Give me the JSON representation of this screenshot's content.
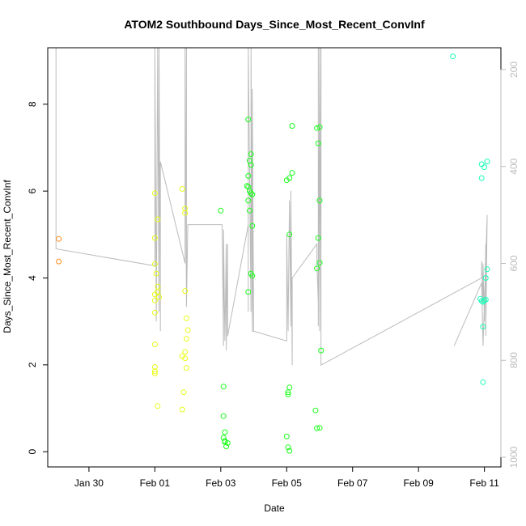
{
  "chart_data": {
    "type": "scatter",
    "title": "ATOM2 Southbound Days_Since_Most_Recent_ConvInf",
    "xlabel": "Date",
    "ylabel": "Days_Since_Most_Recent_ConvInf",
    "xlim": [
      "2024-01-28 18:00",
      "2024-02-11 12:00"
    ],
    "ylim": [
      -0.35,
      9.3
    ],
    "x_ticks": [
      "Jan 30",
      "Feb 01",
      "Feb 03",
      "Feb 05",
      "Feb 07",
      "Feb 09",
      "Feb 11"
    ],
    "y_ticks": [
      0,
      2,
      4,
      6,
      8
    ],
    "y2_ticks": [
      200,
      400,
      600,
      800,
      1000
    ],
    "y2lim": [
      1020,
      155
    ],
    "grid": false,
    "colors": {
      "orange": "#ff8c1a",
      "yellow": "#e8ff1a",
      "green": "#1aff1a",
      "teal": "#1affb8",
      "line": "#bbbbbb"
    },
    "series": [
      {
        "color": "orange",
        "points": [
          [
            "2024-01-29 02:00",
            4.9
          ],
          [
            "2024-01-29 02:00",
            4.38
          ]
        ]
      },
      {
        "color": "yellow",
        "points": [
          [
            "2024-02-01 00:00",
            5.95
          ],
          [
            "2024-02-01 00:00",
            4.92
          ],
          [
            "2024-02-01 00:00",
            4.32
          ],
          [
            "2024-02-01 00:00",
            3.62
          ],
          [
            "2024-02-01 00:00",
            3.48
          ],
          [
            "2024-02-01 00:00",
            3.2
          ],
          [
            "2024-02-01 00:00",
            2.47
          ],
          [
            "2024-02-01 00:00",
            1.95
          ],
          [
            "2024-02-01 00:00",
            1.85
          ],
          [
            "2024-02-01 00:00",
            1.8
          ],
          [
            "2024-02-01 01:00",
            4.1
          ],
          [
            "2024-02-01 02:00",
            5.35
          ],
          [
            "2024-02-01 02:00",
            3.8
          ],
          [
            "2024-02-01 02:00",
            3.68
          ],
          [
            "2024-02-01 03:00",
            3.56
          ],
          [
            "2024-02-01 02:00",
            1.05
          ],
          [
            "2024-02-01 20:00",
            6.05
          ],
          [
            "2024-02-01 20:00",
            2.2
          ],
          [
            "2024-02-01 21:00",
            1.37
          ],
          [
            "2024-02-01 20:00",
            0.97
          ],
          [
            "2024-02-01 22:00",
            5.6
          ],
          [
            "2024-02-01 22:00",
            5.5
          ],
          [
            "2024-02-01 22:00",
            3.7
          ],
          [
            "2024-02-01 23:00",
            3.07
          ],
          [
            "2024-02-02 00:00",
            2.8
          ],
          [
            "2024-02-01 23:00",
            2.6
          ],
          [
            "2024-02-01 22:00",
            2.3
          ],
          [
            "2024-02-01 22:00",
            2.15
          ],
          [
            "2024-02-01 23:00",
            1.93
          ]
        ]
      },
      {
        "color": "green",
        "points": [
          [
            "2024-02-03 00:00",
            5.55
          ],
          [
            "2024-02-03 02:00",
            1.5
          ],
          [
            "2024-02-03 02:00",
            0.82
          ],
          [
            "2024-02-03 03:00",
            0.45
          ],
          [
            "2024-02-03 02:00",
            0.32
          ],
          [
            "2024-02-03 03:00",
            0.25
          ],
          [
            "2024-02-03 03:00",
            0.22
          ],
          [
            "2024-02-03 04:00",
            0.12
          ],
          [
            "2024-02-03 05:00",
            0.2
          ],
          [
            "2024-02-03 20:00",
            7.65
          ],
          [
            "2024-02-03 22:00",
            6.85
          ],
          [
            "2024-02-03 21:00",
            6.7
          ],
          [
            "2024-02-03 22:00",
            6.6
          ],
          [
            "2024-02-03 20:00",
            6.35
          ],
          [
            "2024-02-03 19:00",
            6.12
          ],
          [
            "2024-02-03 20:00",
            6.1
          ],
          [
            "2024-02-03 21:00",
            6.0
          ],
          [
            "2024-02-03 22:00",
            5.95
          ],
          [
            "2024-02-03 23:00",
            5.92
          ],
          [
            "2024-02-03 20:00",
            5.78
          ],
          [
            "2024-02-03 21:00",
            5.55
          ],
          [
            "2024-02-03 23:00",
            5.2
          ],
          [
            "2024-02-03 22:00",
            4.1
          ],
          [
            "2024-02-03 23:00",
            4.05
          ],
          [
            "2024-02-03 20:00",
            3.68
          ],
          [
            "2024-02-05 00:00",
            6.25
          ],
          [
            "2024-02-05 02:00",
            6.3
          ],
          [
            "2024-02-05 04:00",
            6.42
          ],
          [
            "2024-02-05 04:00",
            7.5
          ],
          [
            "2024-02-05 02:00",
            5.0
          ],
          [
            "2024-02-05 02:00",
            1.48
          ],
          [
            "2024-02-05 01:00",
            1.37
          ],
          [
            "2024-02-05 01:00",
            1.32
          ],
          [
            "2024-02-05 00:00",
            0.35
          ],
          [
            "2024-02-05 01:00",
            0.1
          ],
          [
            "2024-02-05 02:00",
            0.02
          ],
          [
            "2024-02-05 22:00",
            7.45
          ],
          [
            "2024-02-06 00:00",
            7.47
          ],
          [
            "2024-02-05 23:00",
            7.1
          ],
          [
            "2024-02-06 00:00",
            5.78
          ],
          [
            "2024-02-05 23:00",
            4.92
          ],
          [
            "2024-02-06 00:00",
            4.35
          ],
          [
            "2024-02-05 22:00",
            4.22
          ],
          [
            "2024-02-06 01:00",
            2.33
          ],
          [
            "2024-02-05 21:00",
            0.95
          ],
          [
            "2024-02-05 22:00",
            0.54
          ],
          [
            "2024-02-06 00:00",
            0.55
          ]
        ]
      },
      {
        "color": "teal",
        "points": [
          [
            "2024-02-10 01:00",
            9.1
          ],
          [
            "2024-02-10 22:00",
            6.62
          ],
          [
            "2024-02-11 02:00",
            6.68
          ],
          [
            "2024-02-11 00:00",
            6.55
          ],
          [
            "2024-02-10 22:00",
            6.3
          ],
          [
            "2024-02-11 02:00",
            4.2
          ],
          [
            "2024-02-11 01:00",
            4.0
          ],
          [
            "2024-02-10 21:00",
            3.52
          ],
          [
            "2024-02-10 22:00",
            3.47
          ],
          [
            "2024-02-10 23:00",
            3.45
          ],
          [
            "2024-02-11 00:00",
            3.48
          ],
          [
            "2024-02-11 01:00",
            3.5
          ],
          [
            "2024-02-10 23:00",
            2.88
          ],
          [
            "2024-02-10 23:00",
            1.6
          ]
        ]
      }
    ],
    "secondary_line": {
      "color": "line",
      "vertices": [
        [
          "2024-01-29 00:00",
          155
        ],
        [
          "2024-01-29 00:00",
          570
        ],
        [
          "2024-02-01 00:00",
          605
        ],
        [
          "2024-02-01 00:00",
          155
        ],
        [
          "2024-02-01 01:00",
          720
        ],
        [
          "2024-02-01 02:00",
          155
        ],
        [
          "2024-02-01 03:00",
          700
        ],
        [
          "2024-02-01 03:00",
          155
        ],
        [
          "2024-02-01 04:00",
          740
        ],
        [
          "2024-02-01 04:00",
          390
        ],
        [
          "2024-02-01 22:00",
          600
        ],
        [
          "2024-02-01 22:00",
          155
        ],
        [
          "2024-02-01 23:00",
          690
        ],
        [
          "2024-02-01 23:00",
          155
        ],
        [
          "2024-02-01 23:00",
          690
        ],
        [
          "2024-02-02 00:00",
          520
        ],
        [
          "2024-02-03 01:00",
          520
        ],
        [
          "2024-02-03 02:00",
          770
        ],
        [
          "2024-02-03 02:00",
          530
        ],
        [
          "2024-02-03 03:00",
          760
        ],
        [
          "2024-02-03 04:00",
          560
        ],
        [
          "2024-02-03 04:00",
          780
        ],
        [
          "2024-02-03 05:00",
          560
        ],
        [
          "2024-02-03 05:00",
          750
        ],
        [
          "2024-02-03 20:00",
          520
        ],
        [
          "2024-02-03 20:00",
          700
        ],
        [
          "2024-02-03 20:00",
          155
        ],
        [
          "2024-02-03 22:00",
          700
        ],
        [
          "2024-02-03 22:00",
          155
        ],
        [
          "2024-02-03 23:00",
          740
        ],
        [
          "2024-02-03 23:00",
          240
        ],
        [
          "2024-02-04 00:00",
          740
        ],
        [
          "2024-02-03 23:00",
          540
        ],
        [
          "2024-02-03 23:00",
          740
        ],
        [
          "2024-02-04 00:00",
          740
        ],
        [
          "2024-02-05 00:00",
          760
        ],
        [
          "2024-02-05 00:00",
          540
        ],
        [
          "2024-02-05 01:00",
          740
        ],
        [
          "2024-02-05 02:00",
          470
        ],
        [
          "2024-02-05 03:00",
          730
        ],
        [
          "2024-02-05 03:00",
          450
        ],
        [
          "2024-02-05 04:00",
          810
        ],
        [
          "2024-02-05 04:00",
          630
        ],
        [
          "2024-02-05 22:00",
          560
        ],
        [
          "2024-02-05 22:00",
          600
        ],
        [
          "2024-02-05 23:00",
          680
        ],
        [
          "2024-02-05 23:00",
          155
        ],
        [
          "2024-02-05 23:00",
          730
        ],
        [
          "2024-02-06 00:00",
          155
        ],
        [
          "2024-02-06 00:00",
          740
        ],
        [
          "2024-02-06 01:00",
          155
        ],
        [
          "2024-02-06 01:00",
          810
        ],
        [
          "2024-02-10 22:00",
          630
        ],
        [
          "2024-02-10 22:00",
          595
        ],
        [
          "2024-02-10 23:00",
          680
        ],
        [
          "2024-02-10 23:00",
          600
        ],
        [
          "2024-02-11 00:00",
          720
        ],
        [
          "2024-02-11 01:00",
          560
        ],
        [
          "2024-02-11 01:00",
          750
        ],
        [
          "2024-02-11 02:00",
          500
        ],
        [
          "2024-02-10 23:00",
          770
        ],
        [
          "2024-02-10 22:00",
          640
        ],
        [
          "2024-02-10 02:00",
          770
        ]
      ]
    }
  }
}
